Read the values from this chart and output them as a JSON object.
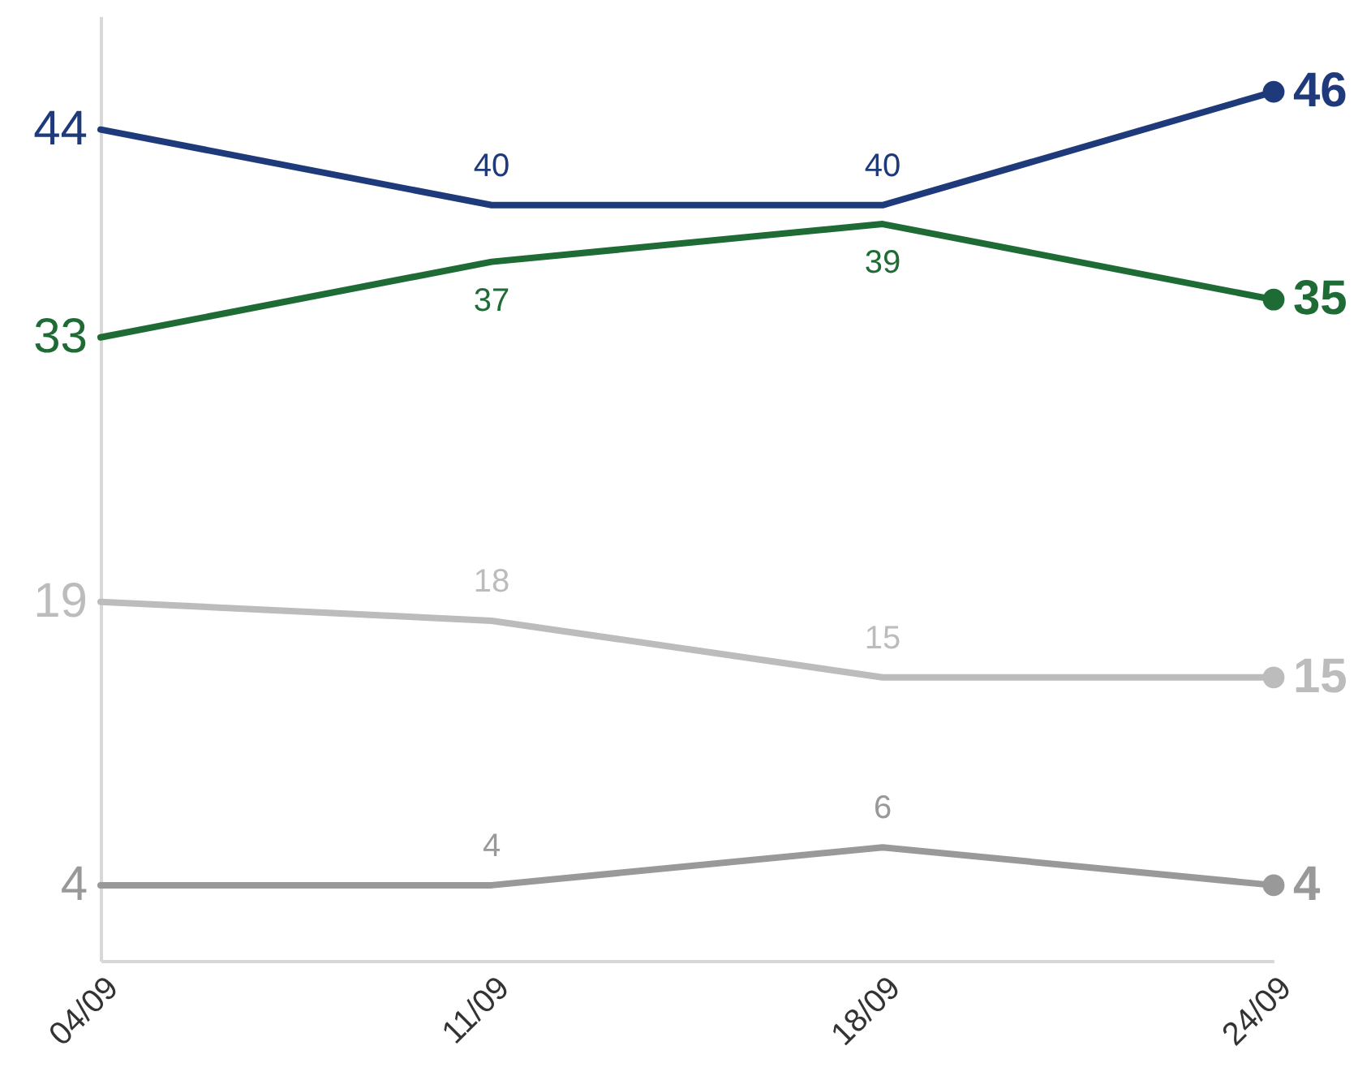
{
  "chart_data": {
    "type": "line",
    "categories": [
      "04/09",
      "11/09",
      "18/09",
      "24/09"
    ],
    "ylim": [
      0,
      50
    ],
    "data_labels": true,
    "line_style": "solid",
    "series": [
      {
        "color": "#1f3a7a",
        "values": [
          44,
          40,
          40,
          46
        ]
      },
      {
        "color": "#1e6b35",
        "values": [
          33,
          37,
          39,
          35
        ]
      },
      {
        "color": "#bcbcbc",
        "values": [
          19,
          18,
          15,
          15
        ]
      },
      {
        "color": "#999999",
        "values": [
          4,
          4,
          6,
          4
        ]
      }
    ]
  }
}
